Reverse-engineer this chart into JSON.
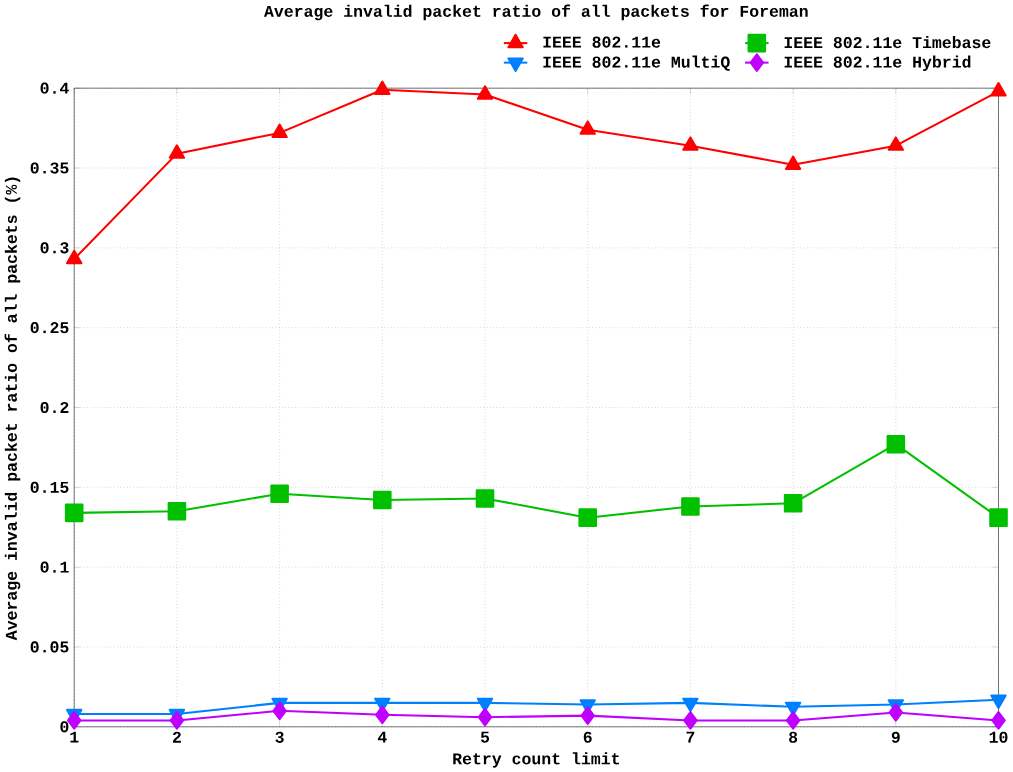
{
  "chart_data": {
    "type": "line",
    "title": "Average invalid packet ratio of all packets for Foreman",
    "xlabel": "Retry count limit",
    "ylabel": "Average invalid packet ratio of all packets (%)",
    "x": [
      1,
      2,
      3,
      4,
      5,
      6,
      7,
      8,
      9,
      10
    ],
    "series": [
      {
        "name": "IEEE 802.11e",
        "color": "#ff0000",
        "marker": "triangle",
        "values": [
          0.293,
          0.359,
          0.372,
          0.399,
          0.396,
          0.374,
          0.364,
          0.352,
          0.364,
          0.398
        ]
      },
      {
        "name": "IEEE 802.11e Timebase",
        "color": "#00c000",
        "marker": "square",
        "values": [
          0.134,
          0.135,
          0.146,
          0.142,
          0.143,
          0.131,
          0.138,
          0.14,
          0.177,
          0.131
        ]
      },
      {
        "name": "IEEE 802.11e MultiQ",
        "color": "#0080ff",
        "marker": "triangle_down",
        "values": [
          0.008,
          0.008,
          0.015,
          0.015,
          0.015,
          0.014,
          0.015,
          0.0125,
          0.014,
          0.017
        ]
      },
      {
        "name": "IEEE 802.11e Hybrid",
        "color": "#c000ff",
        "marker": "diamond",
        "values": [
          0.004,
          0.004,
          0.01,
          0.0075,
          0.006,
          0.007,
          0.004,
          0.004,
          0.009,
          0.004
        ]
      }
    ],
    "xlim": [
      1,
      10
    ],
    "ylim": [
      0,
      0.4
    ],
    "xticks": [
      1,
      2,
      3,
      4,
      5,
      6,
      7,
      8,
      9,
      10
    ],
    "yticks": [
      0,
      0.05,
      0.1,
      0.15,
      0.2,
      0.25,
      0.3,
      0.35,
      0.4
    ],
    "grid": true,
    "legend": "top right",
    "line_style": "solid"
  }
}
